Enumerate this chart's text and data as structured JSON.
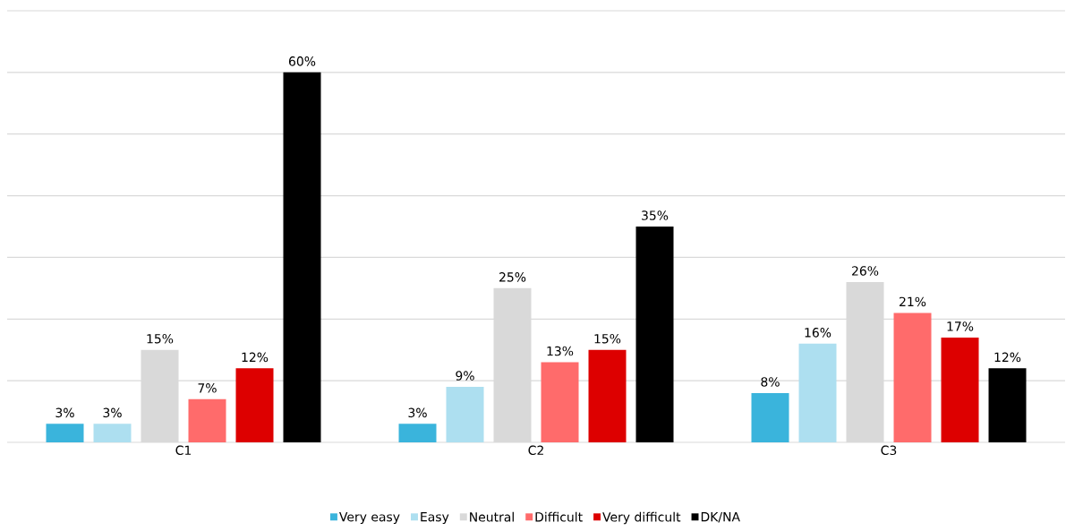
{
  "chart_data": {
    "type": "bar",
    "categories": [
      "C1",
      "C2",
      "C3"
    ],
    "series": [
      {
        "name": "Very easy",
        "color": "#3ab4dc",
        "values": [
          3,
          3,
          8
        ],
        "value_labels": [
          "3%",
          "3%",
          "8%"
        ]
      },
      {
        "name": "Easy",
        "color": "#addff0",
        "values": [
          3,
          9,
          16
        ],
        "value_labels": [
          "3%",
          "9%",
          "16%"
        ]
      },
      {
        "name": "Neutral",
        "color": "#d9d9d9",
        "values": [
          15,
          25,
          26
        ],
        "value_labels": [
          "15%",
          "25%",
          "26%"
        ]
      },
      {
        "name": "Difficult",
        "color": "#ff6b6b",
        "values": [
          7,
          13,
          21
        ],
        "value_labels": [
          "7%",
          "13%",
          "21%"
        ]
      },
      {
        "name": "Very difficult",
        "color": "#dd0000",
        "values": [
          12,
          15,
          17
        ],
        "value_labels": [
          "12%",
          "15%",
          "17%"
        ]
      },
      {
        "name": "DK/NA",
        "color": "#000000",
        "values": [
          60,
          35,
          12
        ],
        "value_labels": [
          "60%",
          "35%",
          "12%"
        ]
      }
    ],
    "ylim": [
      0,
      70
    ],
    "yticks": [
      {
        "value": 0,
        "label": null
      },
      {
        "value": 10,
        "label": null
      },
      {
        "value": 20,
        "label": null
      },
      {
        "value": 30,
        "label": null
      },
      {
        "value": 40,
        "label": null
      },
      {
        "value": 50,
        "label": null
      },
      {
        "value": 60,
        "label": null
      },
      {
        "value": 70,
        "label": null
      }
    ],
    "grid": "y",
    "legend": "bottom",
    "tick_labels": "x"
  }
}
